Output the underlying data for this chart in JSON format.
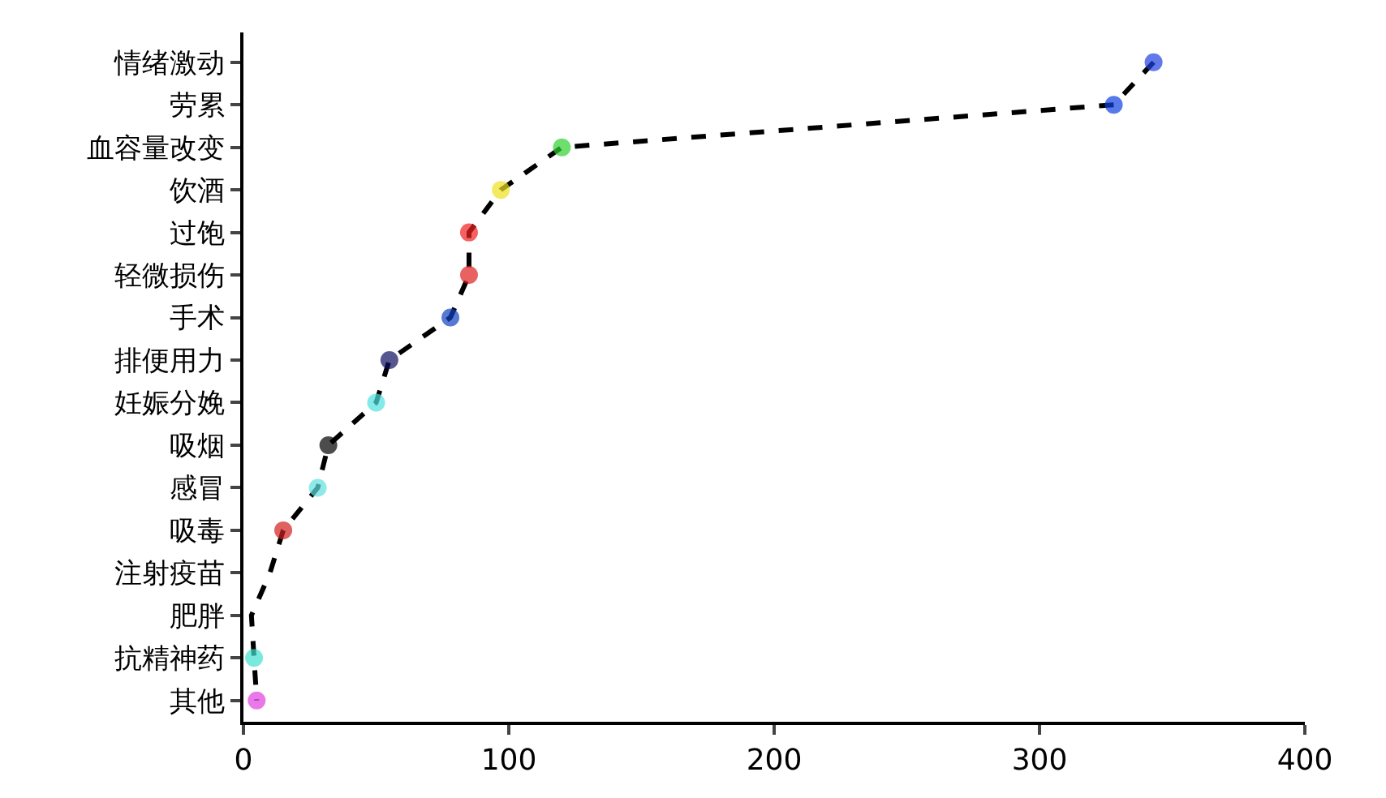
{
  "chart_data": {
    "type": "line",
    "orientation": "horizontal",
    "categories": [
      "情绪激动",
      "劳累",
      "血容量改变",
      "饮酒",
      "过饱",
      "轻微损伤",
      "手术",
      "排便用力",
      "妊娠分娩",
      "吸烟",
      "感冒",
      "吸毒",
      "注射疫苗",
      "肥胖",
      "抗精神药",
      "其他"
    ],
    "values": [
      343,
      328,
      120,
      97,
      85,
      85,
      78,
      55,
      50,
      32,
      28,
      15,
      10,
      3,
      4,
      5
    ],
    "colors": [
      "#2040e0",
      "#1040e0",
      "#30d030",
      "#f0e020",
      "#f02020",
      "#e02020",
      "#1040c0",
      "#101060",
      "#50e0e0",
      "#000000",
      "#60e0e0",
      "#d02020",
      null,
      null,
      "#40e0d0",
      "#e040e0"
    ],
    "xlim": [
      0,
      400
    ],
    "xticks": [
      0,
      100,
      200,
      300,
      400
    ],
    "marker": "circle",
    "line_style": "dashed"
  }
}
